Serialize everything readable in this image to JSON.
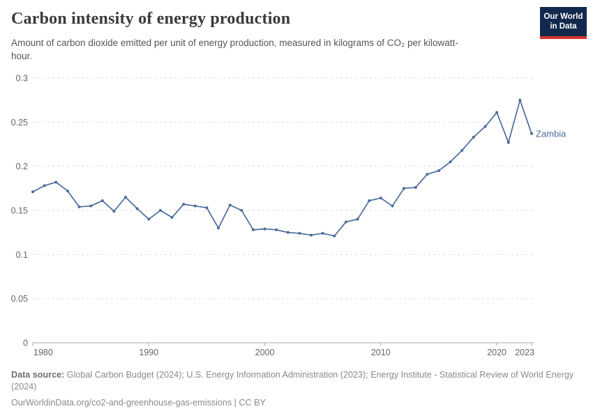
{
  "header": {
    "title": "Carbon intensity of energy production",
    "logo": {
      "line1": "Our World",
      "line2": "in Data"
    }
  },
  "subtitle": "Amount of carbon dioxide emitted per unit of energy production, measured in kilograms of CO₂ per kilowatt-hour.",
  "chart_data": {
    "type": "line",
    "title": "Carbon intensity of energy production",
    "xlabel": "",
    "ylabel": "kilograms of CO₂ per kilowatt-hour",
    "xlim": [
      1980,
      2023
    ],
    "ylim": [
      0,
      0.3
    ],
    "grid": "horizontal-dashed",
    "legend_position": "line-end-label",
    "xticks": [
      1980,
      1990,
      2000,
      2010,
      2020,
      2023
    ],
    "ytick_labels": [
      "0",
      "0.05",
      "0.1",
      "0.15",
      "0.2",
      "0.25",
      "0.3"
    ],
    "series": [
      {
        "name": "Zambia",
        "color": "#4c6a9c",
        "x": [
          1980,
          1981,
          1982,
          1983,
          1984,
          1985,
          1986,
          1987,
          1988,
          1989,
          1990,
          1991,
          1992,
          1993,
          1994,
          1995,
          1996,
          1997,
          1998,
          1999,
          2000,
          2001,
          2002,
          2003,
          2004,
          2005,
          2006,
          2007,
          2008,
          2009,
          2010,
          2011,
          2012,
          2013,
          2014,
          2015,
          2016,
          2017,
          2018,
          2019,
          2020,
          2021,
          2022,
          2023
        ],
        "values": [
          0.171,
          0.178,
          0.182,
          0.172,
          0.154,
          0.155,
          0.161,
          0.149,
          0.165,
          0.152,
          0.14,
          0.15,
          0.142,
          0.157,
          0.155,
          0.153,
          0.13,
          0.156,
          0.15,
          0.128,
          0.129,
          0.128,
          0.125,
          0.124,
          0.122,
          0.124,
          0.121,
          0.137,
          0.14,
          0.161,
          0.164,
          0.155,
          0.175,
          0.176,
          0.191,
          0.195,
          0.205,
          0.218,
          0.233,
          0.245,
          0.261,
          0.227,
          0.275,
          0.237
        ]
      }
    ]
  },
  "footer": {
    "source_label": "Data source:",
    "source_text": " Global Carbon Budget (2024); U.S. Energy Information Administration (2023); Energy Institute - Statistical Review of World Energy (2024)",
    "url_text": "OurWorldinData.org/co2-and-greenhouse-gas-emissions | CC BY"
  },
  "colors": {
    "line": "#4c6a9c",
    "grid": "#dedede",
    "axis": "#a8a8a8",
    "tick_text": "#666666",
    "logo_bg": "#12294d",
    "logo_accent": "#d8352e"
  }
}
